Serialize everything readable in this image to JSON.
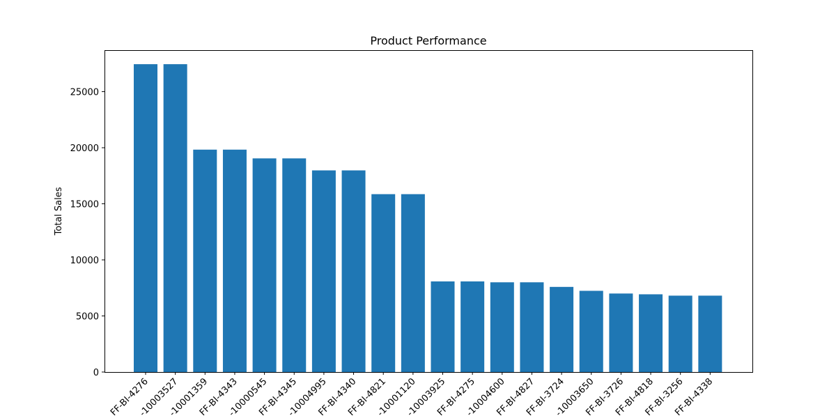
{
  "chart_data": {
    "type": "bar",
    "title": "Product Performance",
    "xlabel": "",
    "ylabel": "Total Sales",
    "ylim": [
      0,
      28700
    ],
    "yticks": [
      0,
      5000,
      10000,
      15000,
      20000,
      25000
    ],
    "grid": false,
    "bar_color": "#1f77b4",
    "categories": [
      "FF-BI-4276",
      "-10003527",
      "-10001359",
      "FF-BI-4343",
      "-10000545",
      "FF-BI-4345",
      "-10004995",
      "FF-BI-4340",
      "FF-BI-4821",
      "-10001120",
      "-10003925",
      "FF-BI-4275",
      "-10004600",
      "FF-BI-4827",
      "FF-BI-3724",
      "-10003650",
      "FF-BI-3726",
      "FF-BI-4818",
      "FF-BI-3256",
      "FF-BI-4338"
    ],
    "values": [
      27450,
      27450,
      19830,
      19830,
      19050,
      19050,
      17980,
      17980,
      15860,
      15860,
      8080,
      8080,
      8000,
      8000,
      7590,
      7240,
      7000,
      6930,
      6810,
      6810
    ]
  }
}
